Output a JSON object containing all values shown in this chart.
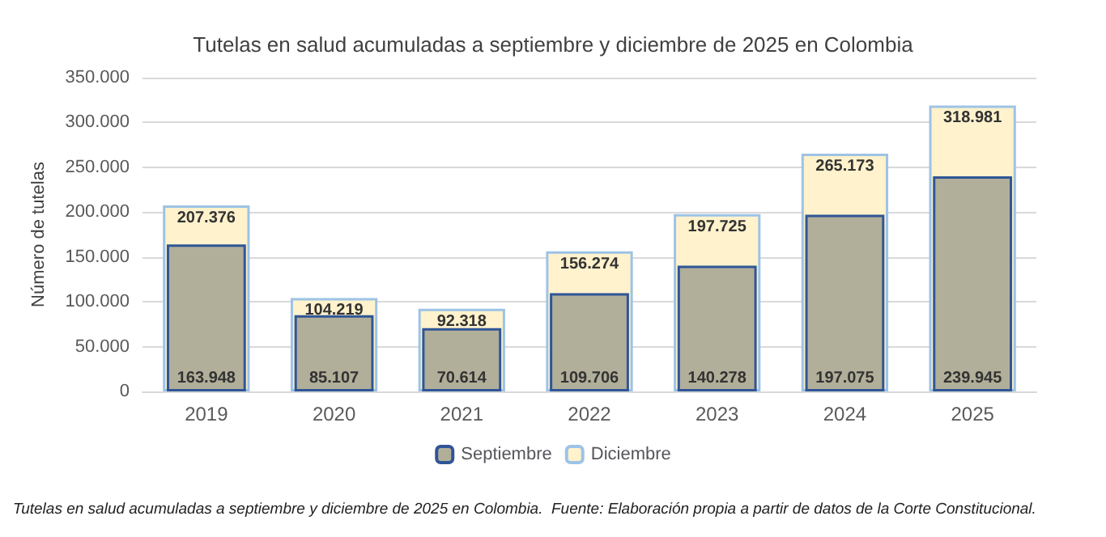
{
  "chart_data": {
    "type": "bar",
    "title": "Tutelas en salud acumuladas a septiembre y diciembre de 2025 en Colombia",
    "ylabel": "Número de tutelas",
    "categories": [
      "2019",
      "2020",
      "2021",
      "2022",
      "2023",
      "2024",
      "2025"
    ],
    "series": [
      {
        "name": "Septiembre",
        "color": "#b1af99",
        "values": [
          163948,
          85107,
          70614,
          109706,
          140278,
          197075,
          239945
        ],
        "value_labels": [
          "163.948",
          "85.107",
          "70.614",
          "109.706",
          "140.278",
          "197.075",
          "239.945"
        ]
      },
      {
        "name": "Diciembre",
        "color": "#fff2cc",
        "values": [
          207376,
          104219,
          92318,
          156274,
          197725,
          265173,
          318981
        ],
        "value_labels": [
          "207.376",
          "104.219",
          "92.318",
          "156.274",
          "197.725",
          "265.173",
          "318.981"
        ]
      }
    ],
    "ylim": [
      0,
      350000
    ],
    "yticks": [
      0,
      {
        "value": 50000,
        "label": "50.000"
      },
      {
        "value": 100000,
        "label": "100.000"
      },
      {
        "value": 150000,
        "label": "150.000"
      },
      {
        "value": 200000,
        "label": "200.000"
      },
      {
        "value": 250000,
        "label": "250.000"
      },
      {
        "value": 300000,
        "label": "300.000"
      },
      {
        "value": 350000,
        "label": "350.000"
      }
    ],
    "grid": "y",
    "legend": "bottom",
    "annotations": [
      "Tutelas en salud acumuladas a septiembre y diciembre de 2025 en Colombia.  Fuente: Elaboración propia a partir de datos de la Corte Constitucional."
    ]
  }
}
